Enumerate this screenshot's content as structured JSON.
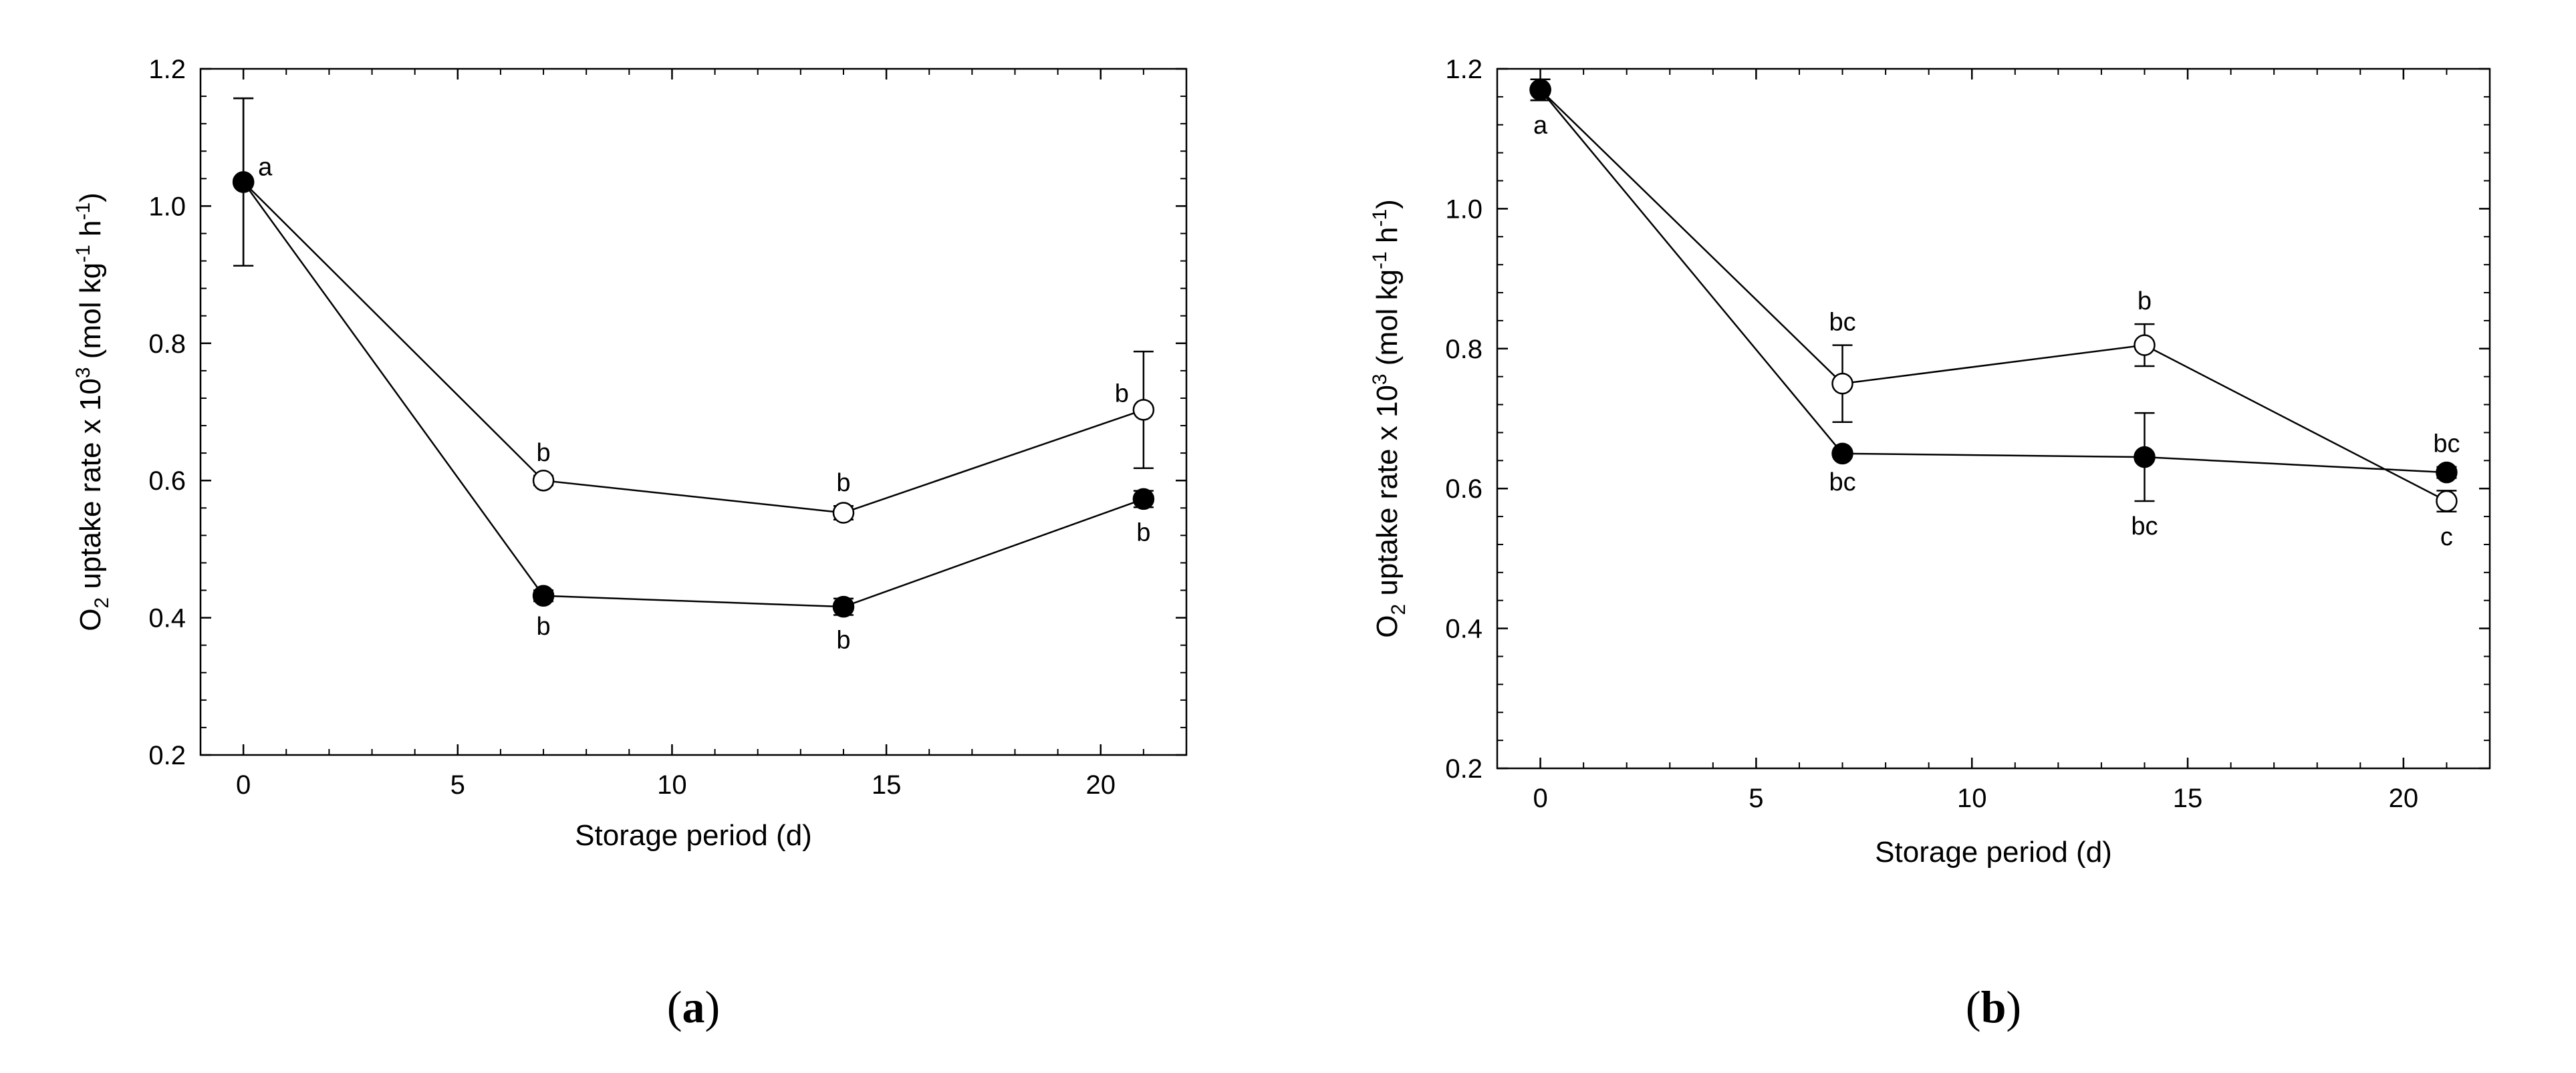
{
  "chart_data": [
    {
      "type": "line",
      "panel": "a",
      "panel_label": "a",
      "xlabel": "Storage period (d)",
      "ylabel": {
        "pre": "O",
        "sub": "2",
        "mid": " uptake rate x 10",
        "sup1": "3",
        "unit_a": " (mol kg",
        "sup2": "-1",
        "unit_b": " h",
        "sup3": "-1",
        "post": ")"
      },
      "xlim": [
        -1,
        22
      ],
      "ylim": [
        0.2,
        1.2
      ],
      "xticks": [
        0,
        5,
        10,
        15,
        20
      ],
      "xtick_labels": [
        "0",
        "5",
        "10",
        "15",
        "20"
      ],
      "yticks": [
        0.2,
        0.4,
        0.6,
        0.8,
        1.0,
        1.2
      ],
      "ytick_labels": [
        "0.2",
        "0.4",
        "0.6",
        "0.8",
        "1.0",
        "1.2"
      ],
      "series": [
        {
          "marker": "open",
          "x": [
            0,
            7,
            14,
            21
          ],
          "y": [
            1.035,
            0.6,
            0.553,
            0.703
          ],
          "err": [
            0.122,
            0.007,
            0.01,
            0.085
          ],
          "labels": [
            "",
            "b",
            "b",
            "b"
          ],
          "label_pos": [
            "",
            "above",
            "above",
            "above-left"
          ]
        },
        {
          "marker": "filled",
          "x": [
            0,
            7,
            14,
            21
          ],
          "y": [
            1.035,
            0.432,
            0.416,
            0.573
          ],
          "err": [
            0.122,
            0.008,
            0.012,
            0.012
          ],
          "labels": [
            "a",
            "b",
            "b",
            "b"
          ],
          "label_pos": [
            "right",
            "below",
            "below",
            "below"
          ]
        }
      ]
    },
    {
      "type": "line",
      "panel": "b",
      "panel_label": "b",
      "xlabel": "Storage period (d)",
      "ylabel": {
        "pre": "O",
        "sub": "2",
        "mid": " uptake rate x 10",
        "sup1": "3",
        "unit_a": " (mol kg",
        "sup2": "-1",
        "unit_b": " h",
        "sup3": "-1",
        "post": ")"
      },
      "xlim": [
        -1,
        22
      ],
      "ylim": [
        0.2,
        1.2
      ],
      "xticks": [
        0,
        5,
        10,
        15,
        20
      ],
      "xtick_labels": [
        "0",
        "5",
        "10",
        "15",
        "20"
      ],
      "yticks": [
        0.2,
        0.4,
        0.6,
        0.8,
        1.0,
        1.2
      ],
      "ytick_labels": [
        "0.2",
        "0.4",
        "0.6",
        "0.8",
        "1.0",
        "1.2"
      ],
      "series": [
        {
          "marker": "open",
          "x": [
            0,
            7,
            14,
            21
          ],
          "y": [
            1.17,
            0.75,
            0.805,
            0.582
          ],
          "err": [
            0.015,
            0.055,
            0.03,
            0.015
          ],
          "labels": [
            "",
            "bc",
            "b",
            "c"
          ],
          "label_pos": [
            "",
            "above",
            "above",
            "below"
          ]
        },
        {
          "marker": "filled",
          "x": [
            0,
            7,
            14,
            21
          ],
          "y": [
            1.17,
            0.65,
            0.645,
            0.623
          ],
          "err": [
            0.015,
            0.005,
            0.063,
            0.008
          ],
          "labels": [
            "a",
            "bc",
            "bc",
            "bc"
          ],
          "label_pos": [
            "below",
            "below",
            "below",
            "above"
          ]
        }
      ]
    }
  ]
}
